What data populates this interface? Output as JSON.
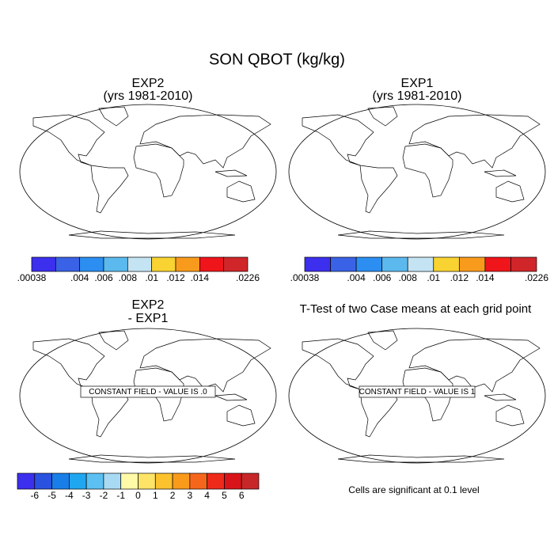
{
  "title": "SON QBOT (kg/kg)",
  "panels": [
    {
      "title": "EXP2",
      "subtitle": "(yrs 1981-2010)"
    },
    {
      "title": "EXP1",
      "subtitle": "(yrs 1981-2010)"
    },
    {
      "title": "EXP2",
      "subtitle": "- EXP1",
      "note": "CONSTANT FIELD - VALUE IS .0"
    },
    {
      "title": "T-Test of two Case means at each grid point",
      "note": "CONSTANT FIELD - VALUE IS 1",
      "caption": "Cells are significant at 0.1 level"
    }
  ],
  "colorbars": [
    {
      "labels": [
        ".00038",
        ".004",
        ".006",
        ".008",
        ".01",
        ".012",
        ".014",
        ".0226"
      ],
      "colors": [
        "#3d2fee",
        "#3a62e6",
        "#2c8ef0",
        "#5bb9ee",
        "#c4e4f3",
        "#f8d331",
        "#f89b1c",
        "#f0151b",
        "#d0262a"
      ]
    },
    {
      "labels": [
        ".00038",
        ".004",
        ".006",
        ".008",
        ".01",
        ".012",
        ".014",
        ".0226"
      ],
      "colors": [
        "#3d2fee",
        "#3a62e6",
        "#2c8ef0",
        "#5bb9ee",
        "#c4e4f3",
        "#f8d331",
        "#f89b1c",
        "#f0151b",
        "#d0262a"
      ]
    },
    {
      "labels": [
        "-6",
        "-5",
        "-4",
        "-3",
        "-2",
        "-1",
        "0",
        "1",
        "2",
        "3",
        "4",
        "5",
        "6"
      ],
      "colors": [
        "#3d2fee",
        "#2a52e0",
        "#1a7ee8",
        "#1fa6f0",
        "#5cc0f2",
        "#a9daf3",
        "#fff9a8",
        "#fde466",
        "#fbc22e",
        "#f99a1b",
        "#f6661a",
        "#ef2a1a",
        "#d8141a",
        "#c8272a"
      ]
    }
  ]
}
